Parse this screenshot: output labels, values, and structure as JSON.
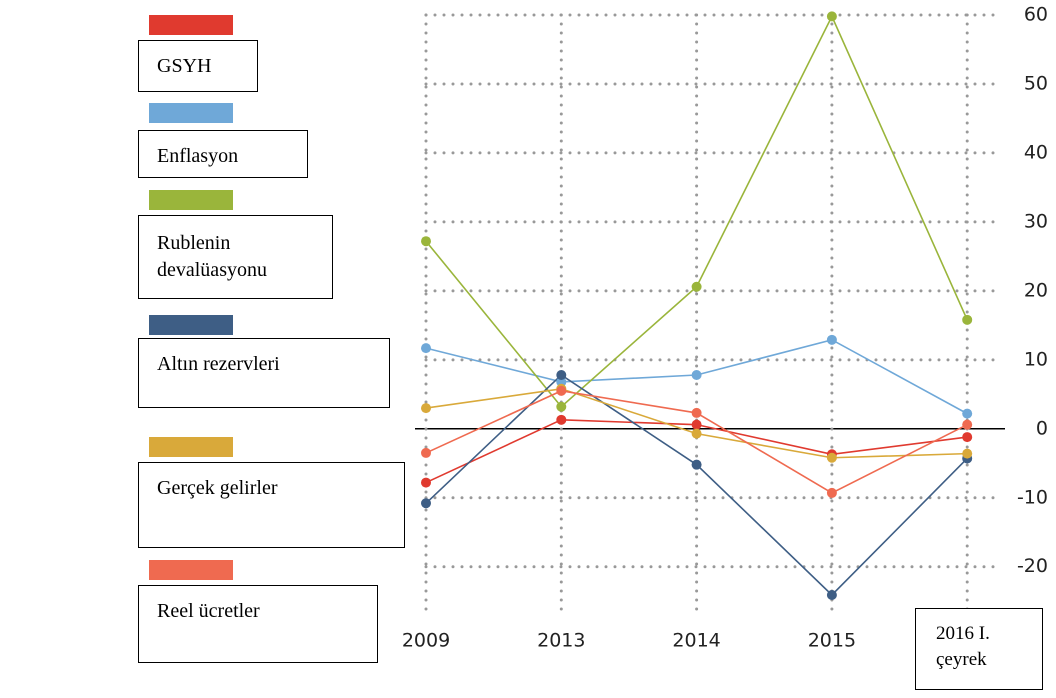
{
  "chart_data": {
    "type": "line",
    "categories": [
      "2009",
      "2013",
      "2014",
      "2015",
      "2016 I. çeyrek"
    ],
    "series": [
      {
        "name": "GSYH",
        "color": "#e03a2f",
        "values": [
          -7.8,
          1.3,
          0.6,
          -3.7,
          -1.2
        ]
      },
      {
        "name": "Enflasyon",
        "color": "#6fa8d8",
        "values": [
          11.7,
          6.8,
          7.8,
          12.9,
          2.2
        ]
      },
      {
        "name": "Rublenin devalüasyonu",
        "color": "#9ab53b",
        "values": [
          27.2,
          3.2,
          20.6,
          59.8,
          15.8
        ]
      },
      {
        "name": "Altın rezervleri",
        "color": "#3e5e85",
        "values": [
          -10.8,
          7.8,
          -5.2,
          -24.1,
          -4.3
        ]
      },
      {
        "name": "Gerçek gelirler",
        "color": "#d9a93a",
        "values": [
          3.0,
          5.8,
          -0.7,
          -4.2,
          -3.6
        ]
      },
      {
        "name": "Reel ücretler",
        "color": "#ef6a50",
        "values": [
          -3.5,
          5.5,
          2.3,
          -9.3,
          0.6
        ]
      }
    ],
    "ylim": [
      -27,
      60
    ],
    "yticks": [
      -20,
      -10,
      0,
      10,
      20,
      30,
      40,
      50,
      60
    ],
    "grid": true
  }
}
